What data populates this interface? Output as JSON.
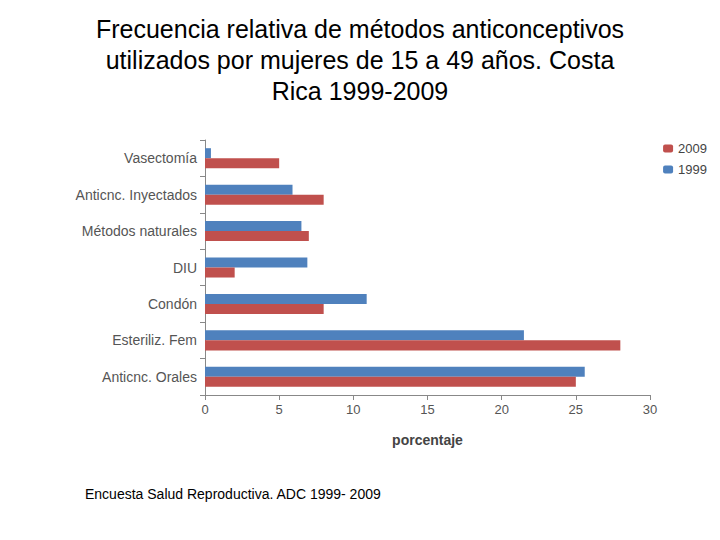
{
  "chart_data": {
    "type": "bar",
    "orientation": "horizontal",
    "title": "Frecuencia relativa de métodos anticonceptivos\nutilizados por mujeres de 15 a 49 años. Costa\nRica 1999-2009",
    "x_label": "porcentaje",
    "annotations": [
      "Encuesta Salud Reproductiva. ADC 1999- 2009"
    ],
    "categories": [
      "Anticnc. Orales",
      "Esteriliz. Fem",
      "Condón",
      "DIU",
      "Métodos naturales",
      "Anticnc. Inyectados",
      "Vasectomía"
    ],
    "series": [
      {
        "name": "2009",
        "color": "#c0504d",
        "values": [
          25,
          28,
          8,
          2,
          7,
          8,
          5
        ]
      },
      {
        "name": "1999",
        "color": "#4f81bd",
        "values": [
          25.6,
          21.5,
          10.9,
          6.9,
          6.5,
          5.9,
          0.4
        ]
      }
    ],
    "xlim": [
      0,
      30
    ],
    "xticks": [
      0,
      5,
      10,
      15,
      20,
      25,
      30
    ],
    "grid": false,
    "legend": "top-right"
  }
}
